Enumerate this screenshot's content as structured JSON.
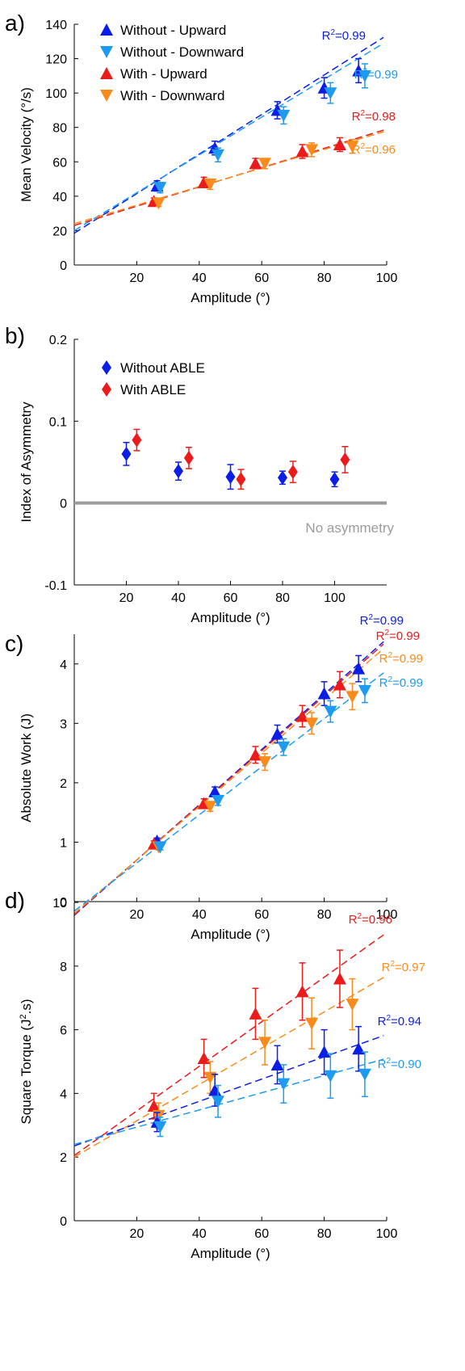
{
  "colors": {
    "without_upward": "#0b1ee6",
    "without_downward": "#1e9bf0",
    "with_upward": "#eb1b1b",
    "with_downward": "#f98b1c",
    "reference_line": "#9b9b9b"
  },
  "chart_data": [
    {
      "panel": "a)",
      "type": "scatter",
      "xlabel": "Amplitude (°)",
      "ylabel": "Mean Velocity (°/s)",
      "xlim": [
        0,
        100
      ],
      "ylim": [
        0,
        140
      ],
      "xticks": [
        20,
        40,
        60,
        80,
        100
      ],
      "yticks": [
        0,
        20,
        40,
        60,
        80,
        100,
        120,
        140
      ],
      "grid": false,
      "legend_position": "top-left",
      "series": [
        {
          "name": "Without - Upward",
          "color_key": "without_upward",
          "marker": "triangle-up",
          "x": [
            26.5,
            45,
            65,
            80,
            91
          ],
          "y": [
            46,
            68,
            90,
            103,
            113
          ],
          "err": [
            3,
            4,
            5,
            6,
            7
          ],
          "fit": [
            18.5,
            1.15
          ],
          "r2_label": "R²=0.99"
        },
        {
          "name": "Without - Downward",
          "color_key": "without_downward",
          "marker": "triangle-down",
          "x": [
            27.5,
            46,
            67,
            82,
            93
          ],
          "y": [
            45,
            64,
            87,
            100,
            110
          ],
          "err": [
            3,
            4,
            5,
            6,
            7
          ],
          "fit": [
            20,
            1.1
          ],
          "r2_label": "R²=0.99"
        },
        {
          "name": "With - Upward",
          "color_key": "with_upward",
          "marker": "triangle-up",
          "x": [
            25.5,
            41.5,
            58,
            73,
            85
          ],
          "y": [
            37,
            48,
            59,
            66,
            70
          ],
          "err": [
            2,
            3,
            3,
            4,
            4
          ],
          "fit": [
            23,
            0.56
          ],
          "r2_label": "R²=0.98"
        },
        {
          "name": "With - Downward",
          "color_key": "with_downward",
          "marker": "triangle-down",
          "x": [
            27,
            43.5,
            61,
            76,
            89
          ],
          "y": [
            36,
            47,
            59,
            67,
            69
          ],
          "err": [
            2,
            3,
            3,
            4,
            4
          ],
          "fit": [
            24,
            0.54
          ],
          "r2_label": "R²=0.96"
        }
      ]
    },
    {
      "panel": "b)",
      "type": "scatter",
      "xlabel": "Amplitude (°)",
      "ylabel": "Index of Asymmetry",
      "xlim": [
        0,
        120
      ],
      "ylim": [
        -0.1,
        0.2
      ],
      "xticks": [
        20,
        40,
        60,
        80,
        100
      ],
      "xtick_labels": [
        "20",
        "40",
        "60",
        "80",
        "100"
      ],
      "yticks": [
        -0.1,
        0,
        0.1,
        0.2
      ],
      "ytick_labels": [
        "-0.1",
        "0",
        "0.1",
        "0.2"
      ],
      "grid": false,
      "legend_position": "top-left",
      "reference_line": {
        "y": 0,
        "label": "No asymmetry"
      },
      "series": [
        {
          "name": "Without ABLE",
          "color_key": "without_upward",
          "marker": "diamond",
          "x": [
            20,
            40,
            60,
            80,
            100
          ],
          "y": [
            0.06,
            0.039,
            0.032,
            0.031,
            0.029
          ],
          "err": [
            0.014,
            0.011,
            0.015,
            0.008,
            0.009
          ]
        },
        {
          "name": "With ABLE",
          "color_key": "with_upward",
          "marker": "diamond",
          "x": [
            24,
            44,
            64,
            84,
            104
          ],
          "y": [
            0.077,
            0.055,
            0.029,
            0.038,
            0.053
          ],
          "err": [
            0.013,
            0.013,
            0.012,
            0.013,
            0.016
          ]
        }
      ]
    },
    {
      "panel": "c)",
      "type": "scatter",
      "xlabel": "Amplitude (°)",
      "ylabel": "Absolute Work (J)",
      "xlim": [
        0,
        100
      ],
      "ylim": [
        0,
        4.5
      ],
      "xticks": [
        20,
        40,
        60,
        80,
        100
      ],
      "yticks": [
        0,
        1,
        2,
        3,
        4
      ],
      "grid": false,
      "legend_position": "none",
      "series": [
        {
          "name": "Without - Upward",
          "color_key": "without_upward",
          "marker": "triangle-up",
          "x": [
            26.5,
            45,
            65,
            80,
            91
          ],
          "y": [
            1.02,
            1.85,
            2.82,
            3.5,
            3.92
          ],
          "err": [
            0.05,
            0.08,
            0.15,
            0.2,
            0.22
          ],
          "fit": [
            -0.23,
            0.0465
          ],
          "r2_label": "R²=0.99"
        },
        {
          "name": "With - Upward",
          "color_key": "with_upward",
          "marker": "triangle-up",
          "x": [
            25.5,
            41.5,
            58,
            73,
            85
          ],
          "y": [
            0.97,
            1.65,
            2.47,
            3.12,
            3.65
          ],
          "err": [
            0.05,
            0.08,
            0.14,
            0.18,
            0.22
          ],
          "fit": [
            -0.22,
            0.046
          ],
          "r2_label": "R²=0.99"
        },
        {
          "name": "With - Downward",
          "color_key": "with_downward",
          "marker": "triangle-down",
          "x": [
            27,
            43.5,
            61,
            76,
            89
          ],
          "y": [
            0.92,
            1.6,
            2.35,
            3.0,
            3.45
          ],
          "err": [
            0.05,
            0.08,
            0.14,
            0.18,
            0.22
          ],
          "fit": [
            -0.2,
            0.045
          ],
          "r2_label": "R²=0.99"
        },
        {
          "name": "Without - Downward",
          "color_key": "without_downward",
          "marker": "triangle-down",
          "x": [
            27.5,
            46,
            67,
            82,
            93
          ],
          "y": [
            0.92,
            1.7,
            2.6,
            3.2,
            3.55
          ],
          "err": [
            0.05,
            0.08,
            0.14,
            0.18,
            0.2
          ],
          "fit": [
            -0.16,
            0.0405
          ],
          "r2_label": "R²=0.99"
        }
      ]
    },
    {
      "panel": "d)",
      "type": "scatter",
      "xlabel": "Amplitude (°)",
      "ylabel": "Square Torque (J².s)",
      "xlim": [
        0,
        100
      ],
      "ylim": [
        0,
        10
      ],
      "xticks": [
        20,
        40,
        60,
        80,
        100
      ],
      "yticks": [
        0,
        2,
        4,
        6,
        8,
        10
      ],
      "grid": false,
      "legend_position": "none",
      "series": [
        {
          "name": "With - Upward",
          "color_key": "with_upward",
          "marker": "triangle-up",
          "x": [
            25.5,
            41.5,
            58,
            73,
            85
          ],
          "y": [
            3.6,
            5.1,
            6.5,
            7.2,
            7.6
          ],
          "err": [
            0.4,
            0.6,
            0.8,
            0.9,
            0.9
          ],
          "fit": [
            2.05,
            0.07
          ],
          "r2_label": "R²=0.96"
        },
        {
          "name": "With - Downward",
          "color_key": "with_downward",
          "marker": "triangle-down",
          "x": [
            27,
            43.5,
            61,
            76,
            89
          ],
          "y": [
            3.3,
            4.5,
            5.6,
            6.2,
            6.8
          ],
          "err": [
            0.4,
            0.5,
            0.7,
            0.8,
            0.8
          ],
          "fit": [
            2.0,
            0.057
          ],
          "r2_label": "R²=0.97"
        },
        {
          "name": "Without - Upward",
          "color_key": "without_upward",
          "marker": "triangle-up",
          "x": [
            26.5,
            45,
            65,
            80,
            91
          ],
          "y": [
            3.1,
            4.1,
            4.9,
            5.3,
            5.4
          ],
          "err": [
            0.3,
            0.5,
            0.6,
            0.7,
            0.7
          ],
          "fit": [
            2.35,
            0.035
          ],
          "r2_label": "R²=0.94"
        },
        {
          "name": "Without - Downward",
          "color_key": "without_downward",
          "marker": "triangle-down",
          "x": [
            27.5,
            46,
            67,
            82,
            93
          ],
          "y": [
            2.95,
            3.75,
            4.3,
            4.55,
            4.6
          ],
          "err": [
            0.3,
            0.5,
            0.6,
            0.7,
            0.7
          ],
          "fit": [
            2.4,
            0.027
          ],
          "r2_label": "R²=0.90"
        }
      ]
    }
  ]
}
